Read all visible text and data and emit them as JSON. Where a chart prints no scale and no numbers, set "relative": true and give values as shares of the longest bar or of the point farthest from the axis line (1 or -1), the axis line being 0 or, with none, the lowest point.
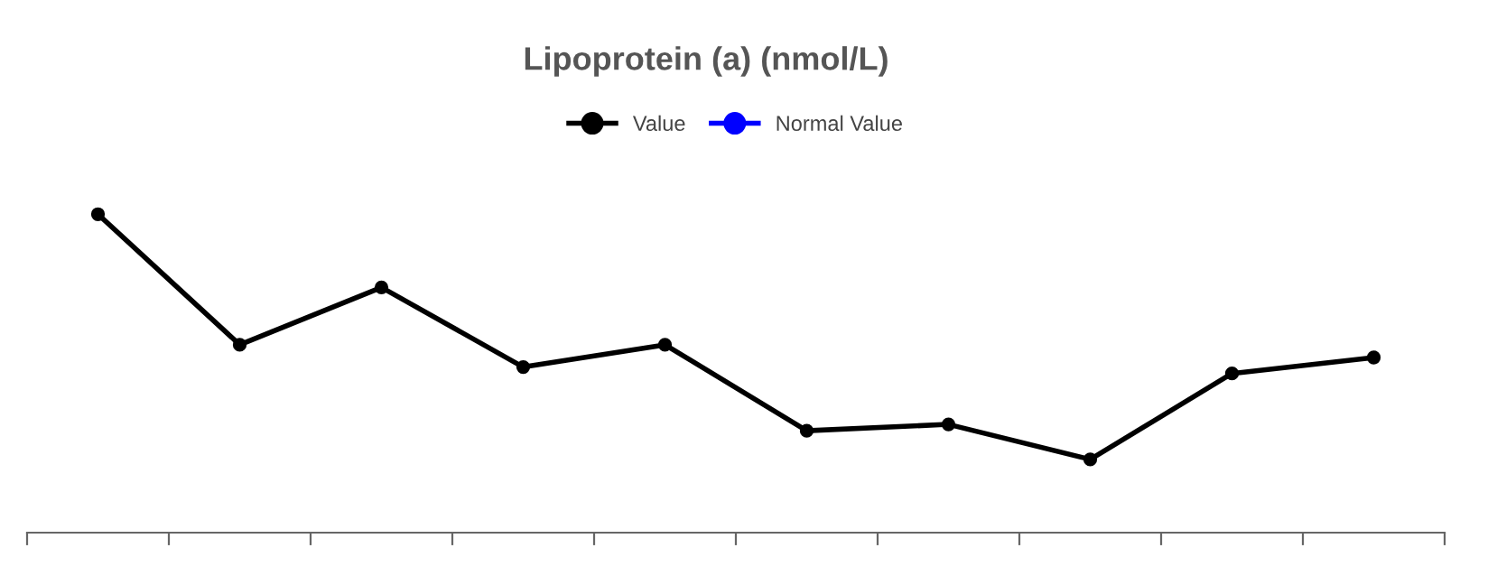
{
  "chart_data": {
    "type": "line",
    "title": "Lipoprotein (a) (nmol/L)",
    "relative": true,
    "categories": [
      null,
      null,
      null,
      null,
      null,
      null,
      null,
      null,
      null,
      null
    ],
    "series": [
      {
        "name": "Value",
        "color": "#000000",
        "values": [
          1,
          0.59,
          0.77,
          0.52,
          0.59,
          0.32,
          0.34,
          0.23,
          0.5,
          0.55
        ]
      },
      {
        "name": "Normal Value",
        "color": "#0000ff",
        "values": [
          null,
          null,
          null,
          null,
          null,
          null,
          null,
          null,
          null,
          null
        ]
      }
    ],
    "marker": "circle",
    "line_style": "solid",
    "legend": "top"
  }
}
